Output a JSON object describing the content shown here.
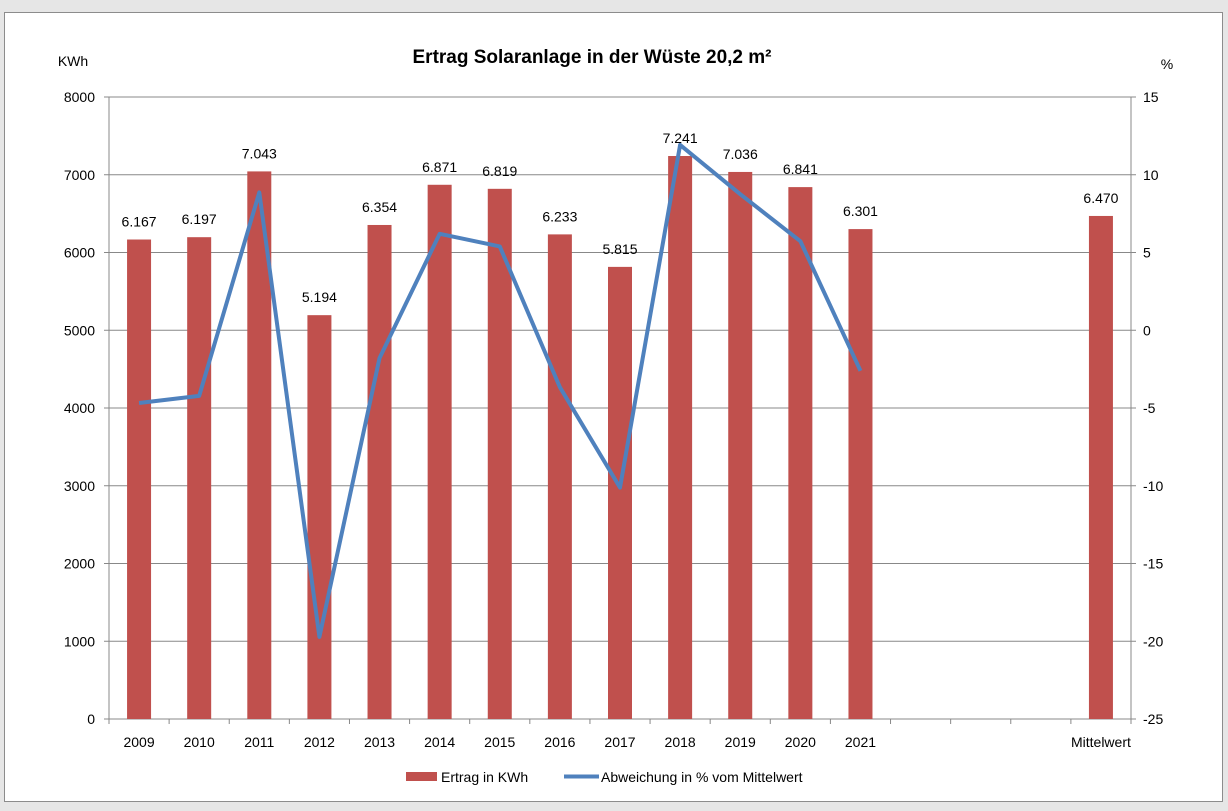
{
  "chart_data": {
    "type": "bar+line",
    "title": "Ertrag Solaranlage in der Wüste 20,2 m²",
    "ylabel_left": "KWh",
    "ylabel_right": "%",
    "categories": [
      "2009",
      "2010",
      "2011",
      "2012",
      "2013",
      "2014",
      "2015",
      "2016",
      "2017",
      "2018",
      "2019",
      "2020",
      "2021",
      "",
      "",
      "",
      "Mittelwert"
    ],
    "series": [
      {
        "name": "Ertrag in KWh",
        "type": "bar",
        "axis": "left",
        "color": "#c0504d",
        "values": [
          6167,
          6197,
          7043,
          5194,
          6354,
          6871,
          6819,
          6233,
          5815,
          7241,
          7036,
          6841,
          6301,
          null,
          null,
          null,
          6470
        ],
        "labels": [
          "6.167",
          "6.197",
          "7.043",
          "5.194",
          "6.354",
          "6.871",
          "6.819",
          "6.233",
          "5.815",
          "7.241",
          "7.036",
          "6.841",
          "6.301",
          null,
          null,
          null,
          "6.470"
        ]
      },
      {
        "name": "Abweichung in % vom Mittelwert",
        "type": "line",
        "axis": "right",
        "color": "#4f81bd",
        "values": [
          -4.68,
          -4.22,
          8.86,
          -19.72,
          -1.79,
          6.2,
          5.39,
          -3.66,
          -10.12,
          11.92,
          8.75,
          5.73,
          -2.61,
          null,
          null,
          null,
          null
        ]
      }
    ],
    "y_left": {
      "min": 0,
      "max": 8000,
      "ticks": [
        0,
        1000,
        2000,
        3000,
        4000,
        5000,
        6000,
        7000,
        8000
      ]
    },
    "y_right": {
      "min": -25,
      "max": 15,
      "ticks": [
        -25,
        -20,
        -15,
        -10,
        -5,
        0,
        5,
        10,
        15
      ]
    },
    "grid": true,
    "legend": "bottom"
  }
}
